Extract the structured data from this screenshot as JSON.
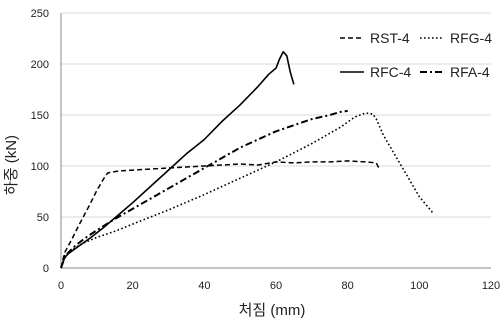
{
  "chart_data": {
    "type": "line",
    "title": "",
    "xlabel": "처짐 (mm)",
    "ylabel": "하중 (kN)",
    "xlim": [
      0,
      120
    ],
    "ylim": [
      0,
      250
    ],
    "xticks": [
      0,
      20,
      40,
      60,
      80,
      100,
      120
    ],
    "yticks": [
      0,
      50,
      100,
      150,
      200,
      250
    ],
    "grid": "horizontal",
    "legend_position": "top-right",
    "series": [
      {
        "name": "RST-4",
        "dash": "dashed",
        "x": [
          0,
          1,
          3,
          5,
          8,
          10,
          12,
          13,
          14,
          16,
          20,
          30,
          40,
          50,
          55,
          60,
          65,
          70,
          75,
          80,
          85,
          88,
          89
        ],
        "y": [
          0,
          15,
          28,
          42,
          62,
          76,
          88,
          93,
          94,
          95,
          96,
          98,
          100,
          102,
          101,
          104,
          103,
          104,
          104,
          105,
          104,
          103,
          96
        ]
      },
      {
        "name": "RFG-4",
        "dash": "dotted",
        "x": [
          0,
          1,
          3,
          6,
          10,
          15,
          20,
          30,
          40,
          50,
          60,
          70,
          78,
          82,
          85,
          87,
          88,
          90,
          95,
          100,
          104
        ],
        "y": [
          0,
          12,
          18,
          24,
          30,
          36,
          43,
          57,
          72,
          88,
          104,
          122,
          138,
          148,
          152,
          151,
          146,
          130,
          100,
          70,
          53
        ]
      },
      {
        "name": "RFC-4",
        "dash": "solid",
        "x": [
          0,
          1,
          2,
          4,
          8,
          12,
          16,
          20,
          25,
          30,
          35,
          40,
          45,
          50,
          55,
          58,
          60,
          61,
          62,
          63,
          64,
          65
        ],
        "y": [
          0,
          10,
          14,
          19,
          29,
          40,
          52,
          64,
          80,
          96,
          112,
          126,
          144,
          160,
          178,
          190,
          196,
          205,
          212,
          208,
          192,
          180
        ]
      },
      {
        "name": "RFA-4",
        "dash": "dash-dot",
        "x": [
          0,
          1,
          2,
          4,
          7,
          10,
          15,
          20,
          25,
          30,
          40,
          50,
          60,
          70,
          75,
          78,
          80
        ],
        "y": [
          0,
          10,
          15,
          22,
          30,
          37,
          48,
          58,
          68,
          78,
          98,
          118,
          134,
          146,
          150,
          153,
          154
        ]
      }
    ]
  }
}
